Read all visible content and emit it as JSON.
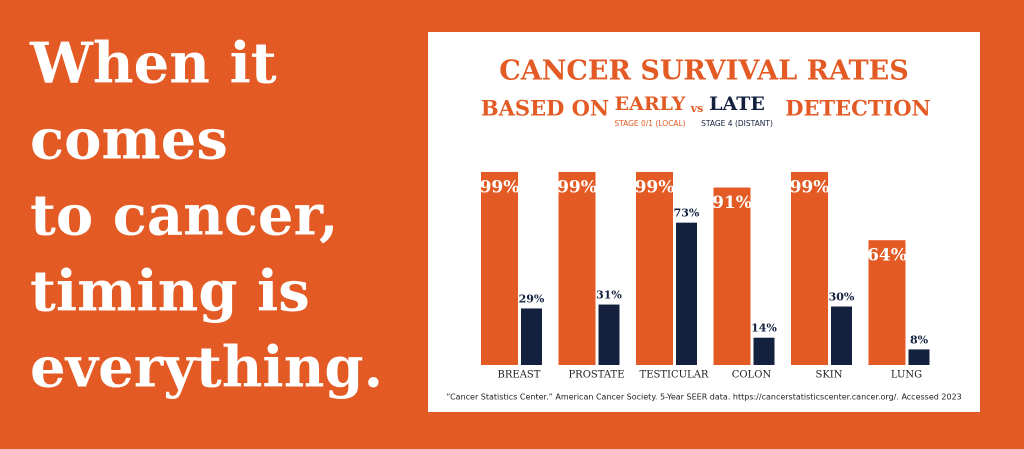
{
  "headline": [
    "When it",
    "comes",
    "to cancer,",
    "timing is",
    "everything."
  ],
  "chart_data": {
    "type": "bar",
    "title": "CANCER SURVIVAL RATES",
    "subtitle_prefix": "BASED ON",
    "subtitle_joiner": "vs",
    "subtitle_suffix": "DETECTION",
    "categories": [
      "BREAST",
      "PROSTATE",
      "TESTICULAR",
      "COLON",
      "SKIN",
      "LUNG"
    ],
    "series": [
      {
        "name": "EARLY",
        "stage": "STAGE 0/1 (LOCAL)",
        "color": "#e35a24",
        "values": [
          99,
          99,
          99,
          91,
          99,
          64
        ],
        "value_labels": [
          "99%",
          "99%",
          "99%",
          "91%",
          "99%",
          "64%"
        ]
      },
      {
        "name": "LATE",
        "stage": "STAGE 4 (DISTANT)",
        "color": "#13213f",
        "values": [
          29,
          31,
          73,
          14,
          30,
          8
        ],
        "value_labels": [
          "29%",
          "31%",
          "73%",
          "14%",
          "30%",
          "8%"
        ]
      }
    ],
    "ylim": [
      0,
      100
    ],
    "source": "“Cancer Statistics Center.” American Cancer Society. 5-Year SEER data. https://cancerstatisticscenter.cancer.org/. Accessed 2023"
  }
}
